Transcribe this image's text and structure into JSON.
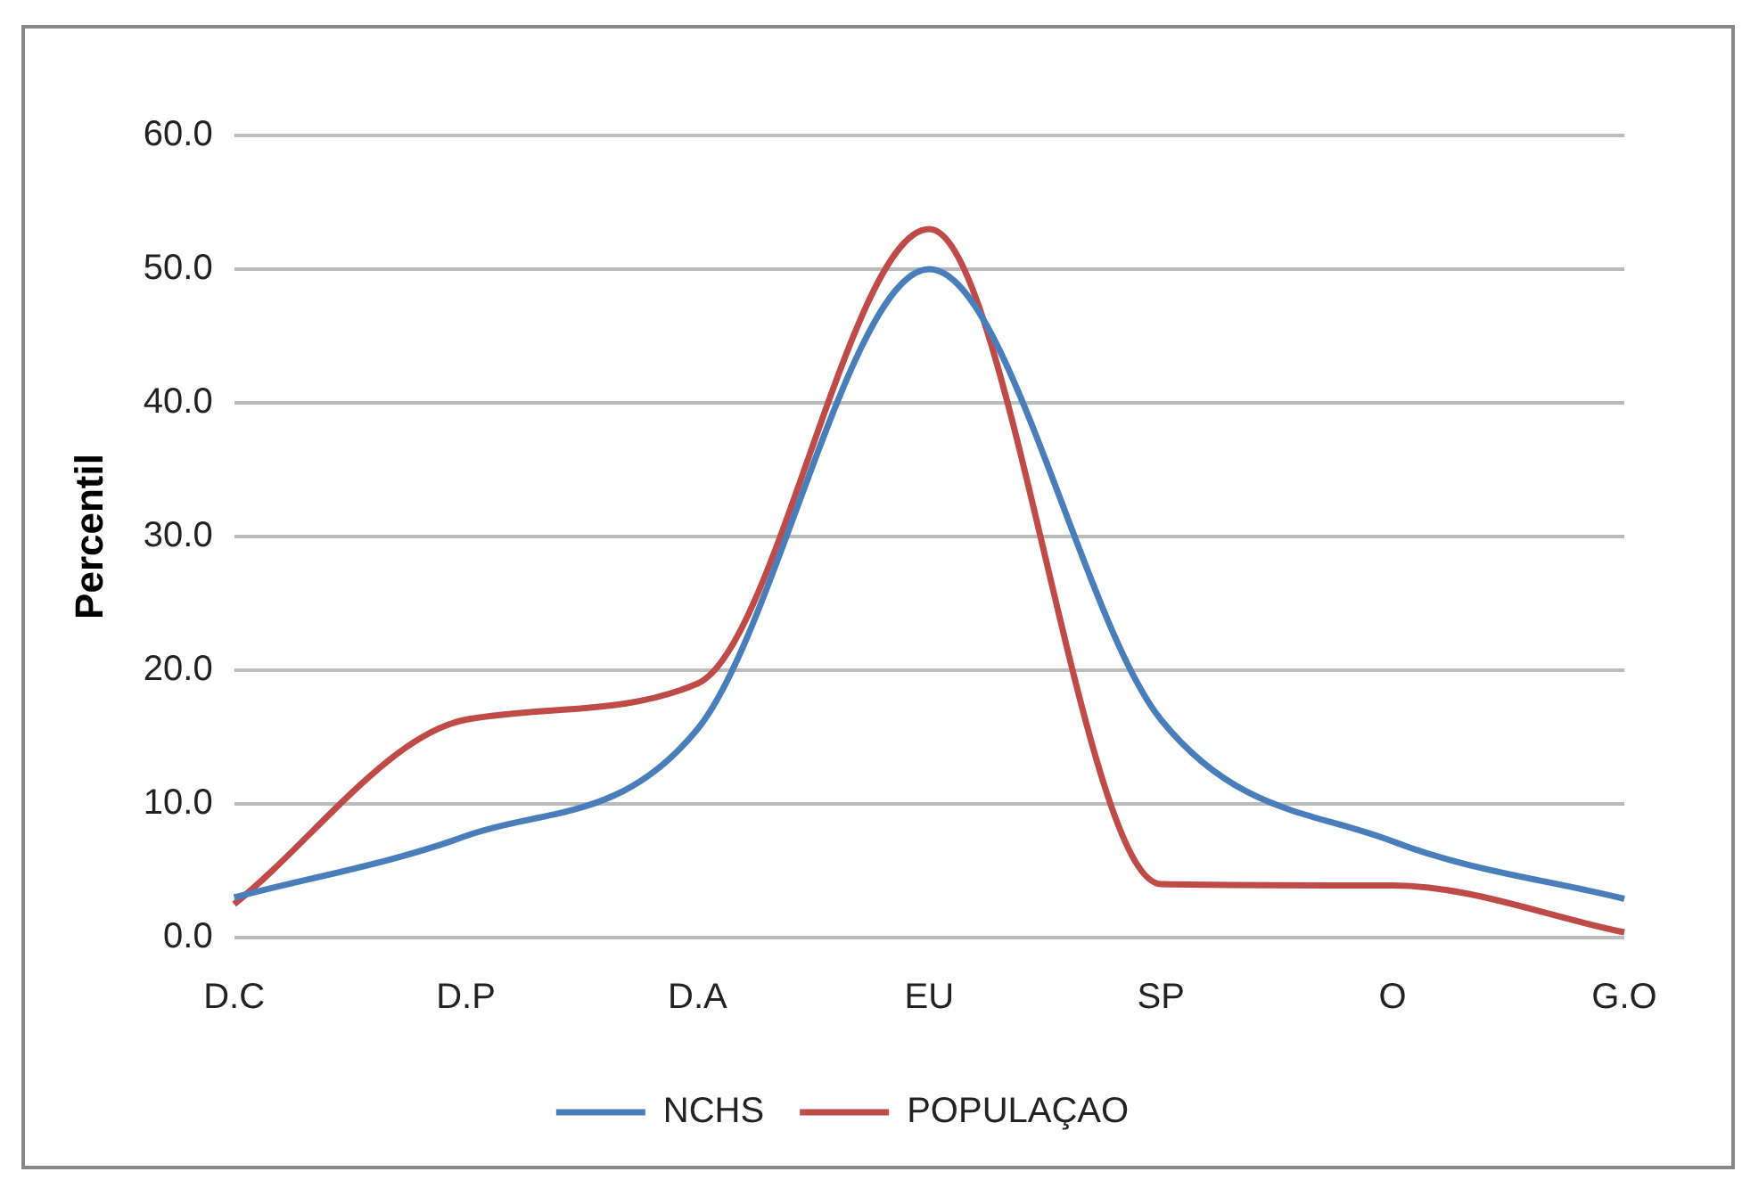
{
  "chart_data": {
    "type": "line",
    "ylabel": "Percentil",
    "categories": [
      "D.C",
      "D.P",
      "D.A",
      "EU",
      "SP",
      "O",
      "G.O"
    ],
    "series": [
      {
        "name": "NCHS",
        "color": "#4a7ebb",
        "values": [
          3.0,
          7.6,
          15.6,
          50.0,
          16.3,
          7.2,
          2.9
        ]
      },
      {
        "name": "POPULAÇAO",
        "color": "#be4b48",
        "values": [
          2.5,
          16.3,
          19.0,
          53.0,
          4.0,
          3.9,
          0.4
        ]
      }
    ],
    "ylim": [
      0,
      60
    ],
    "yticks": [
      {
        "value": 0,
        "label": "0.0"
      },
      {
        "value": 10,
        "label": "10.0"
      },
      {
        "value": 20,
        "label": "20.0"
      },
      {
        "value": 30,
        "label": "30.0"
      },
      {
        "value": 40,
        "label": "40.0"
      },
      {
        "value": 50,
        "label": "50.0"
      },
      {
        "value": 60,
        "label": "60.0"
      }
    ],
    "grid": "y",
    "legend": "bottom",
    "marker": "none",
    "line_style": "solid"
  }
}
